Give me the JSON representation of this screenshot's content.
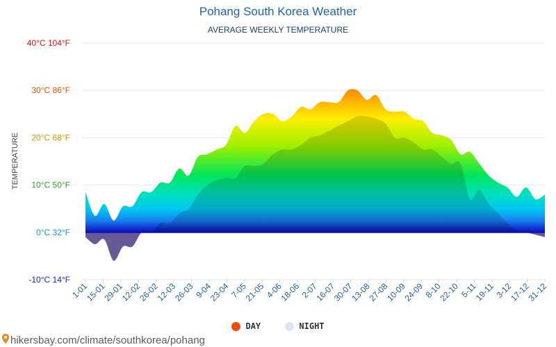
{
  "title": "Pohang South Korea Weather",
  "subtitle": "AVERAGE WEEKLY TEMPERATURE",
  "source": "hikersbay.com/climate/southkorea/pohang",
  "legend": {
    "day": "DAY",
    "night": "NIGHT"
  },
  "colors": {
    "day_marker": "#f04a10",
    "night_marker": "#dde6f0",
    "night_fill": "#6a5aa6"
  },
  "chart_data": {
    "type": "area",
    "ylabel": "TEMPERATURE",
    "ylim": [
      -10,
      40
    ],
    "y_ticks": [
      {
        "value": 40,
        "label": "40°C 104°F",
        "color": "#e01010"
      },
      {
        "value": 30,
        "label": "30°C 86°F",
        "color": "#f05000"
      },
      {
        "value": 20,
        "label": "20°C 68°F",
        "color": "#e09000"
      },
      {
        "value": 10,
        "label": "10°C 50°F",
        "color": "#22aa22"
      },
      {
        "value": 0,
        "label": "0°C 32°F",
        "color": "#1e90e8"
      },
      {
        "value": -10,
        "label": "-10°C 14°F",
        "color": "#1020c0"
      }
    ],
    "x_tick_labels": [
      "1-01",
      "15-01",
      "29-01",
      "12-02",
      "26-02",
      "12-03",
      "26-03",
      "9-04",
      "23-04",
      "7-05",
      "21-05",
      "4-06",
      "18-06",
      "2-07",
      "16-07",
      "30-07",
      "13-08",
      "27-08",
      "10-09",
      "24-09",
      "8-10",
      "22-10",
      "5-11",
      "19-11",
      "3-12",
      "17-12",
      "31-12"
    ],
    "series": [
      {
        "name": "DAY",
        "values": [
          8.5,
          3.5,
          6,
          2.5,
          5.5,
          5.5,
          8.5,
          8.5,
          10.5,
          10.5,
          13.5,
          12,
          16,
          16.5,
          17.5,
          18.5,
          22.5,
          21,
          23.5,
          25,
          25,
          23.5,
          24.5,
          26.5,
          26,
          27.5,
          27.5,
          27.5,
          30,
          30,
          28,
          29,
          26,
          25.5,
          25.5,
          24,
          23.5,
          21,
          20.5,
          19.5,
          16.5,
          17,
          14.5,
          12,
          10.5,
          9.5,
          7.5,
          9.5,
          7,
          8
        ]
      },
      {
        "name": "NIGHT",
        "values": [
          -1,
          -2.5,
          -1.5,
          -6,
          -3,
          -3,
          0,
          0,
          2,
          2,
          4,
          5,
          8,
          10,
          11,
          11.5,
          11.5,
          14,
          14,
          14.5,
          16.5,
          17.5,
          17.5,
          18.5,
          20,
          20.5,
          21.5,
          22.5,
          23.5,
          24.5,
          24.5,
          24,
          23,
          20,
          20,
          19,
          17.5,
          17.5,
          16,
          14.5,
          14.5,
          7,
          9,
          6,
          4,
          2,
          0.5,
          0,
          -0.5,
          -1
        ]
      }
    ]
  }
}
